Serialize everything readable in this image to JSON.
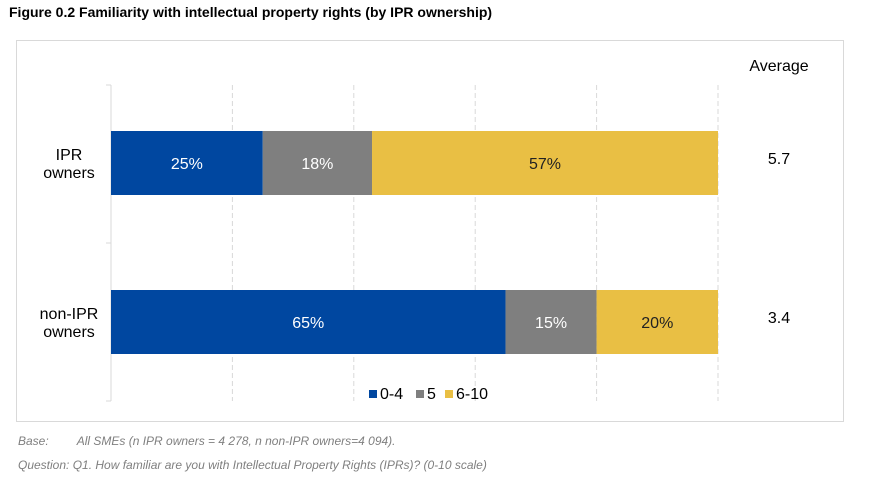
{
  "figure_title": "Figure 0.2 Familiarity with intellectual property rights (by IPR ownership)",
  "chart_data": {
    "type": "bar",
    "orientation": "horizontal",
    "stacked": true,
    "stack_mode": "percent",
    "categories": [
      [
        "IPR",
        "owners"
      ],
      [
        "non-IPR",
        "owners"
      ]
    ],
    "series": [
      {
        "name": "0-4",
        "color": "#0047a0",
        "values": [
          25,
          65
        ],
        "labels": [
          "25%",
          "65%"
        ],
        "label_color": "#ffffff"
      },
      {
        "name": "5",
        "color": "#7f7f7f",
        "values": [
          18,
          15
        ],
        "labels": [
          "18%",
          "15%"
        ],
        "label_color": "#ffffff"
      },
      {
        "name": "6-10",
        "color": "#e9bf44",
        "values": [
          57,
          20
        ],
        "labels": [
          "57%",
          "20%"
        ],
        "label_color": "#222222"
      }
    ],
    "xlim": [
      0,
      100
    ],
    "grid": "vertical dashed",
    "legend_position": "bottom",
    "side_column": {
      "header": "Average",
      "values": [
        "5.7",
        "3.4"
      ]
    }
  },
  "notes": {
    "base_label": "Base:",
    "base_text": "All SMEs (n IPR owners = 4 278, n non-IPR owners=4 094).",
    "question": "Question: Q1. How familiar are you with Intellectual Property Rights (IPRs)? (0-10 scale)"
  }
}
